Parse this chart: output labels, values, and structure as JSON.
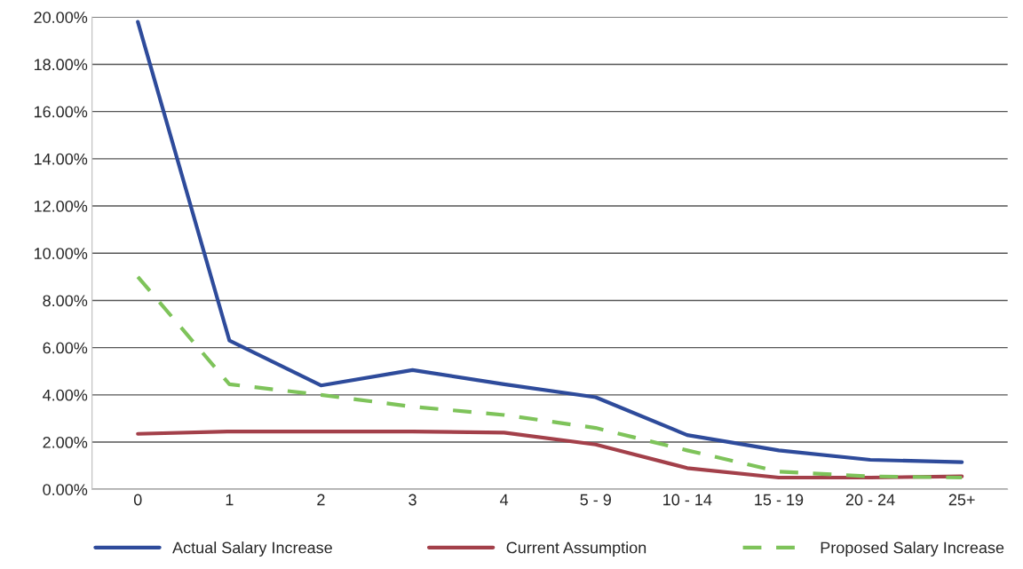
{
  "chart_data": {
    "type": "line",
    "categories": [
      "0",
      "1",
      "2",
      "3",
      "4",
      "5 - 9",
      "10 - 14",
      "15 - 19",
      "20 - 24",
      "25+"
    ],
    "series": [
      {
        "name": "Actual Salary Increase",
        "color": "#2e4b9b",
        "line_style": "solid",
        "values": [
          19.8,
          6.3,
          4.4,
          5.05,
          4.45,
          3.9,
          2.3,
          1.65,
          1.25,
          1.15
        ]
      },
      {
        "name": "Current Assumption",
        "color": "#a3404a",
        "line_style": "solid",
        "values": [
          2.35,
          2.45,
          2.45,
          2.45,
          2.4,
          1.9,
          0.9,
          0.5,
          0.5,
          0.55
        ]
      },
      {
        "name": "Proposed Salary Increase",
        "color": "#7ec35a",
        "line_style": "dashed",
        "values": [
          9.0,
          4.45,
          4.0,
          3.5,
          3.15,
          2.6,
          1.65,
          0.75,
          0.55,
          0.5
        ]
      }
    ],
    "ylim": [
      0,
      20
    ],
    "yticks": [
      {
        "value": 0,
        "label": "0.00%"
      },
      {
        "value": 2,
        "label": "2.00%"
      },
      {
        "value": 4,
        "label": "4.00%"
      },
      {
        "value": 6,
        "label": "6.00%"
      },
      {
        "value": 8,
        "label": "8.00%"
      },
      {
        "value": 10,
        "label": "10.00%"
      },
      {
        "value": 12,
        "label": "12.00%"
      },
      {
        "value": 14,
        "label": "14.00%"
      },
      {
        "value": 16,
        "label": "16.00%"
      },
      {
        "value": 18,
        "label": "18.00%"
      },
      {
        "value": 20,
        "label": "20.00%"
      }
    ],
    "grid": "y",
    "legend": "bottom",
    "marker": "none"
  }
}
